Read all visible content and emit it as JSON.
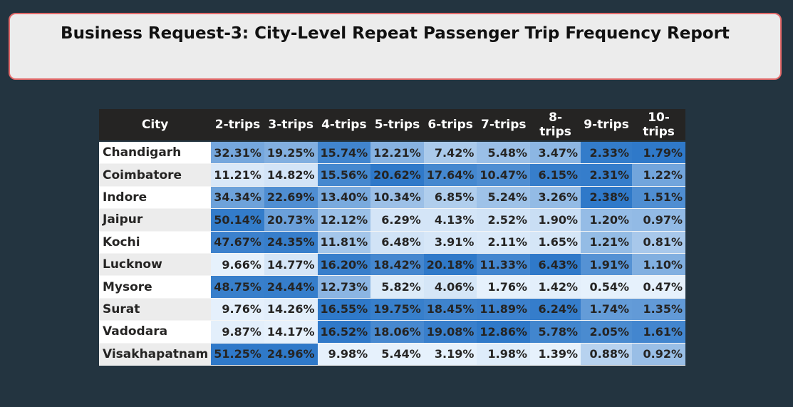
{
  "header": {
    "title": "Business Request-3: City-Level Repeat Passenger Trip Frequency Report"
  },
  "colors": {
    "background": "#233440",
    "card_background": "#ececec",
    "card_border": "#e36a6a",
    "header_row": "#252423",
    "scale_low": "#e6f1fc",
    "scale_high": "#2f79c9"
  },
  "chart_data": {
    "type": "heatmap",
    "title": "Business Request-3: City-Level Repeat Passenger Trip Frequency Report",
    "row_header": "City",
    "columns": [
      "2-trips",
      "3-trips",
      "4-trips",
      "5-trips",
      "6-trips",
      "7-trips",
      "8-trips",
      "9-trips",
      "10-trips"
    ],
    "rows": [
      {
        "city": "Chandigarh",
        "values": [
          "32.31%",
          "19.25%",
          "15.74%",
          "12.21%",
          "7.42%",
          "5.48%",
          "3.47%",
          "2.33%",
          "1.79%"
        ]
      },
      {
        "city": "Coimbatore",
        "values": [
          "11.21%",
          "14.82%",
          "15.56%",
          "20.62%",
          "17.64%",
          "10.47%",
          "6.15%",
          "2.31%",
          "1.22%"
        ]
      },
      {
        "city": "Indore",
        "values": [
          "34.34%",
          "22.69%",
          "13.40%",
          "10.34%",
          "6.85%",
          "5.24%",
          "3.26%",
          "2.38%",
          "1.51%"
        ]
      },
      {
        "city": "Jaipur",
        "values": [
          "50.14%",
          "20.73%",
          "12.12%",
          "6.29%",
          "4.13%",
          "2.52%",
          "1.90%",
          "1.20%",
          "0.97%"
        ]
      },
      {
        "city": "Kochi",
        "values": [
          "47.67%",
          "24.35%",
          "11.81%",
          "6.48%",
          "3.91%",
          "2.11%",
          "1.65%",
          "1.21%",
          "0.81%"
        ]
      },
      {
        "city": "Lucknow",
        "values": [
          "9.66%",
          "14.77%",
          "16.20%",
          "18.42%",
          "20.18%",
          "11.33%",
          "6.43%",
          "1.91%",
          "1.10%"
        ]
      },
      {
        "city": "Mysore",
        "values": [
          "48.75%",
          "24.44%",
          "12.73%",
          "5.82%",
          "4.06%",
          "1.76%",
          "1.42%",
          "0.54%",
          "0.47%"
        ]
      },
      {
        "city": "Surat",
        "values": [
          "9.76%",
          "14.26%",
          "16.55%",
          "19.75%",
          "18.45%",
          "11.89%",
          "6.24%",
          "1.74%",
          "1.35%"
        ]
      },
      {
        "city": "Vadodara",
        "values": [
          "9.87%",
          "14.17%",
          "16.52%",
          "18.06%",
          "19.08%",
          "12.86%",
          "5.78%",
          "2.05%",
          "1.61%"
        ]
      },
      {
        "city": "Visakhapatnam",
        "values": [
          "51.25%",
          "24.96%",
          "9.98%",
          "5.44%",
          "3.19%",
          "1.98%",
          "1.39%",
          "0.88%",
          "0.92%"
        ]
      }
    ]
  }
}
